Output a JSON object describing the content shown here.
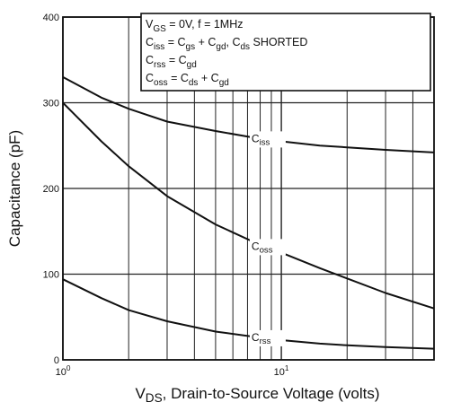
{
  "chart_data": {
    "type": "line",
    "xscale": "log",
    "xlim": [
      1,
      50
    ],
    "ylim": [
      0,
      400
    ],
    "grid": true,
    "xlabel": "VDS, Drain-to-Source Voltage (volts)",
    "xlabel_parts": {
      "main": "V",
      "sub": "DS",
      "rest": ", Drain-to-Source Voltage (volts)"
    },
    "ylabel": "Capacitance (pF)",
    "y_ticks": [
      0,
      100,
      200,
      300,
      400
    ],
    "y_tick_labels": [
      "0",
      "100",
      "200",
      "300",
      "400"
    ],
    "x_ticks": [
      1,
      10
    ],
    "x_tick_labels": [
      {
        "base": "10",
        "exp": "0"
      },
      {
        "base": "10",
        "exp": "1"
      }
    ],
    "legend_box": [
      [
        {
          "t": "V"
        },
        {
          "t": "GS",
          "sub": true
        },
        {
          "t": " = 0V,  f = 1MHz"
        }
      ],
      [
        {
          "t": "C"
        },
        {
          "t": "iss",
          "sub": true
        },
        {
          "t": " = C"
        },
        {
          "t": "gs",
          "sub": true
        },
        {
          "t": " + C"
        },
        {
          "t": "gd",
          "sub": true
        },
        {
          "t": ",  C"
        },
        {
          "t": "ds",
          "sub": true
        },
        {
          "t": "  SHORTED"
        }
      ],
      [
        {
          "t": "C"
        },
        {
          "t": "rss",
          "sub": true
        },
        {
          "t": " = C"
        },
        {
          "t": "gd",
          "sub": true
        }
      ],
      [
        {
          "t": "C"
        },
        {
          "t": "oss",
          "sub": true
        },
        {
          "t": " = C"
        },
        {
          "t": "ds",
          "sub": true
        },
        {
          "t": " + C"
        },
        {
          "t": "gd",
          "sub": true
        }
      ]
    ],
    "series": [
      {
        "name": "Ciss",
        "label_main": "C",
        "label_sub": "iss",
        "label_at": 8.5,
        "x": [
          1,
          1.5,
          2,
          3,
          5,
          8,
          10,
          15,
          20,
          30,
          50
        ],
        "y": [
          330,
          306,
          293,
          278,
          267,
          258,
          255,
          250,
          248,
          245,
          242
        ]
      },
      {
        "name": "Coss",
        "label_main": "C",
        "label_sub": "oss",
        "label_at": 8.5,
        "x": [
          1,
          1.5,
          2,
          3,
          5,
          8,
          10,
          15,
          20,
          30,
          50
        ],
        "y": [
          300,
          255,
          226,
          191,
          158,
          134,
          125,
          107,
          95,
          78,
          60
        ]
      },
      {
        "name": "Crss",
        "label_main": "C",
        "label_sub": "rss",
        "label_at": 8.5,
        "x": [
          1,
          1.5,
          2,
          3,
          5,
          8,
          10,
          15,
          20,
          30,
          50
        ],
        "y": [
          94,
          72,
          58,
          45,
          33,
          26,
          23,
          19,
          17,
          15,
          13
        ]
      }
    ]
  }
}
